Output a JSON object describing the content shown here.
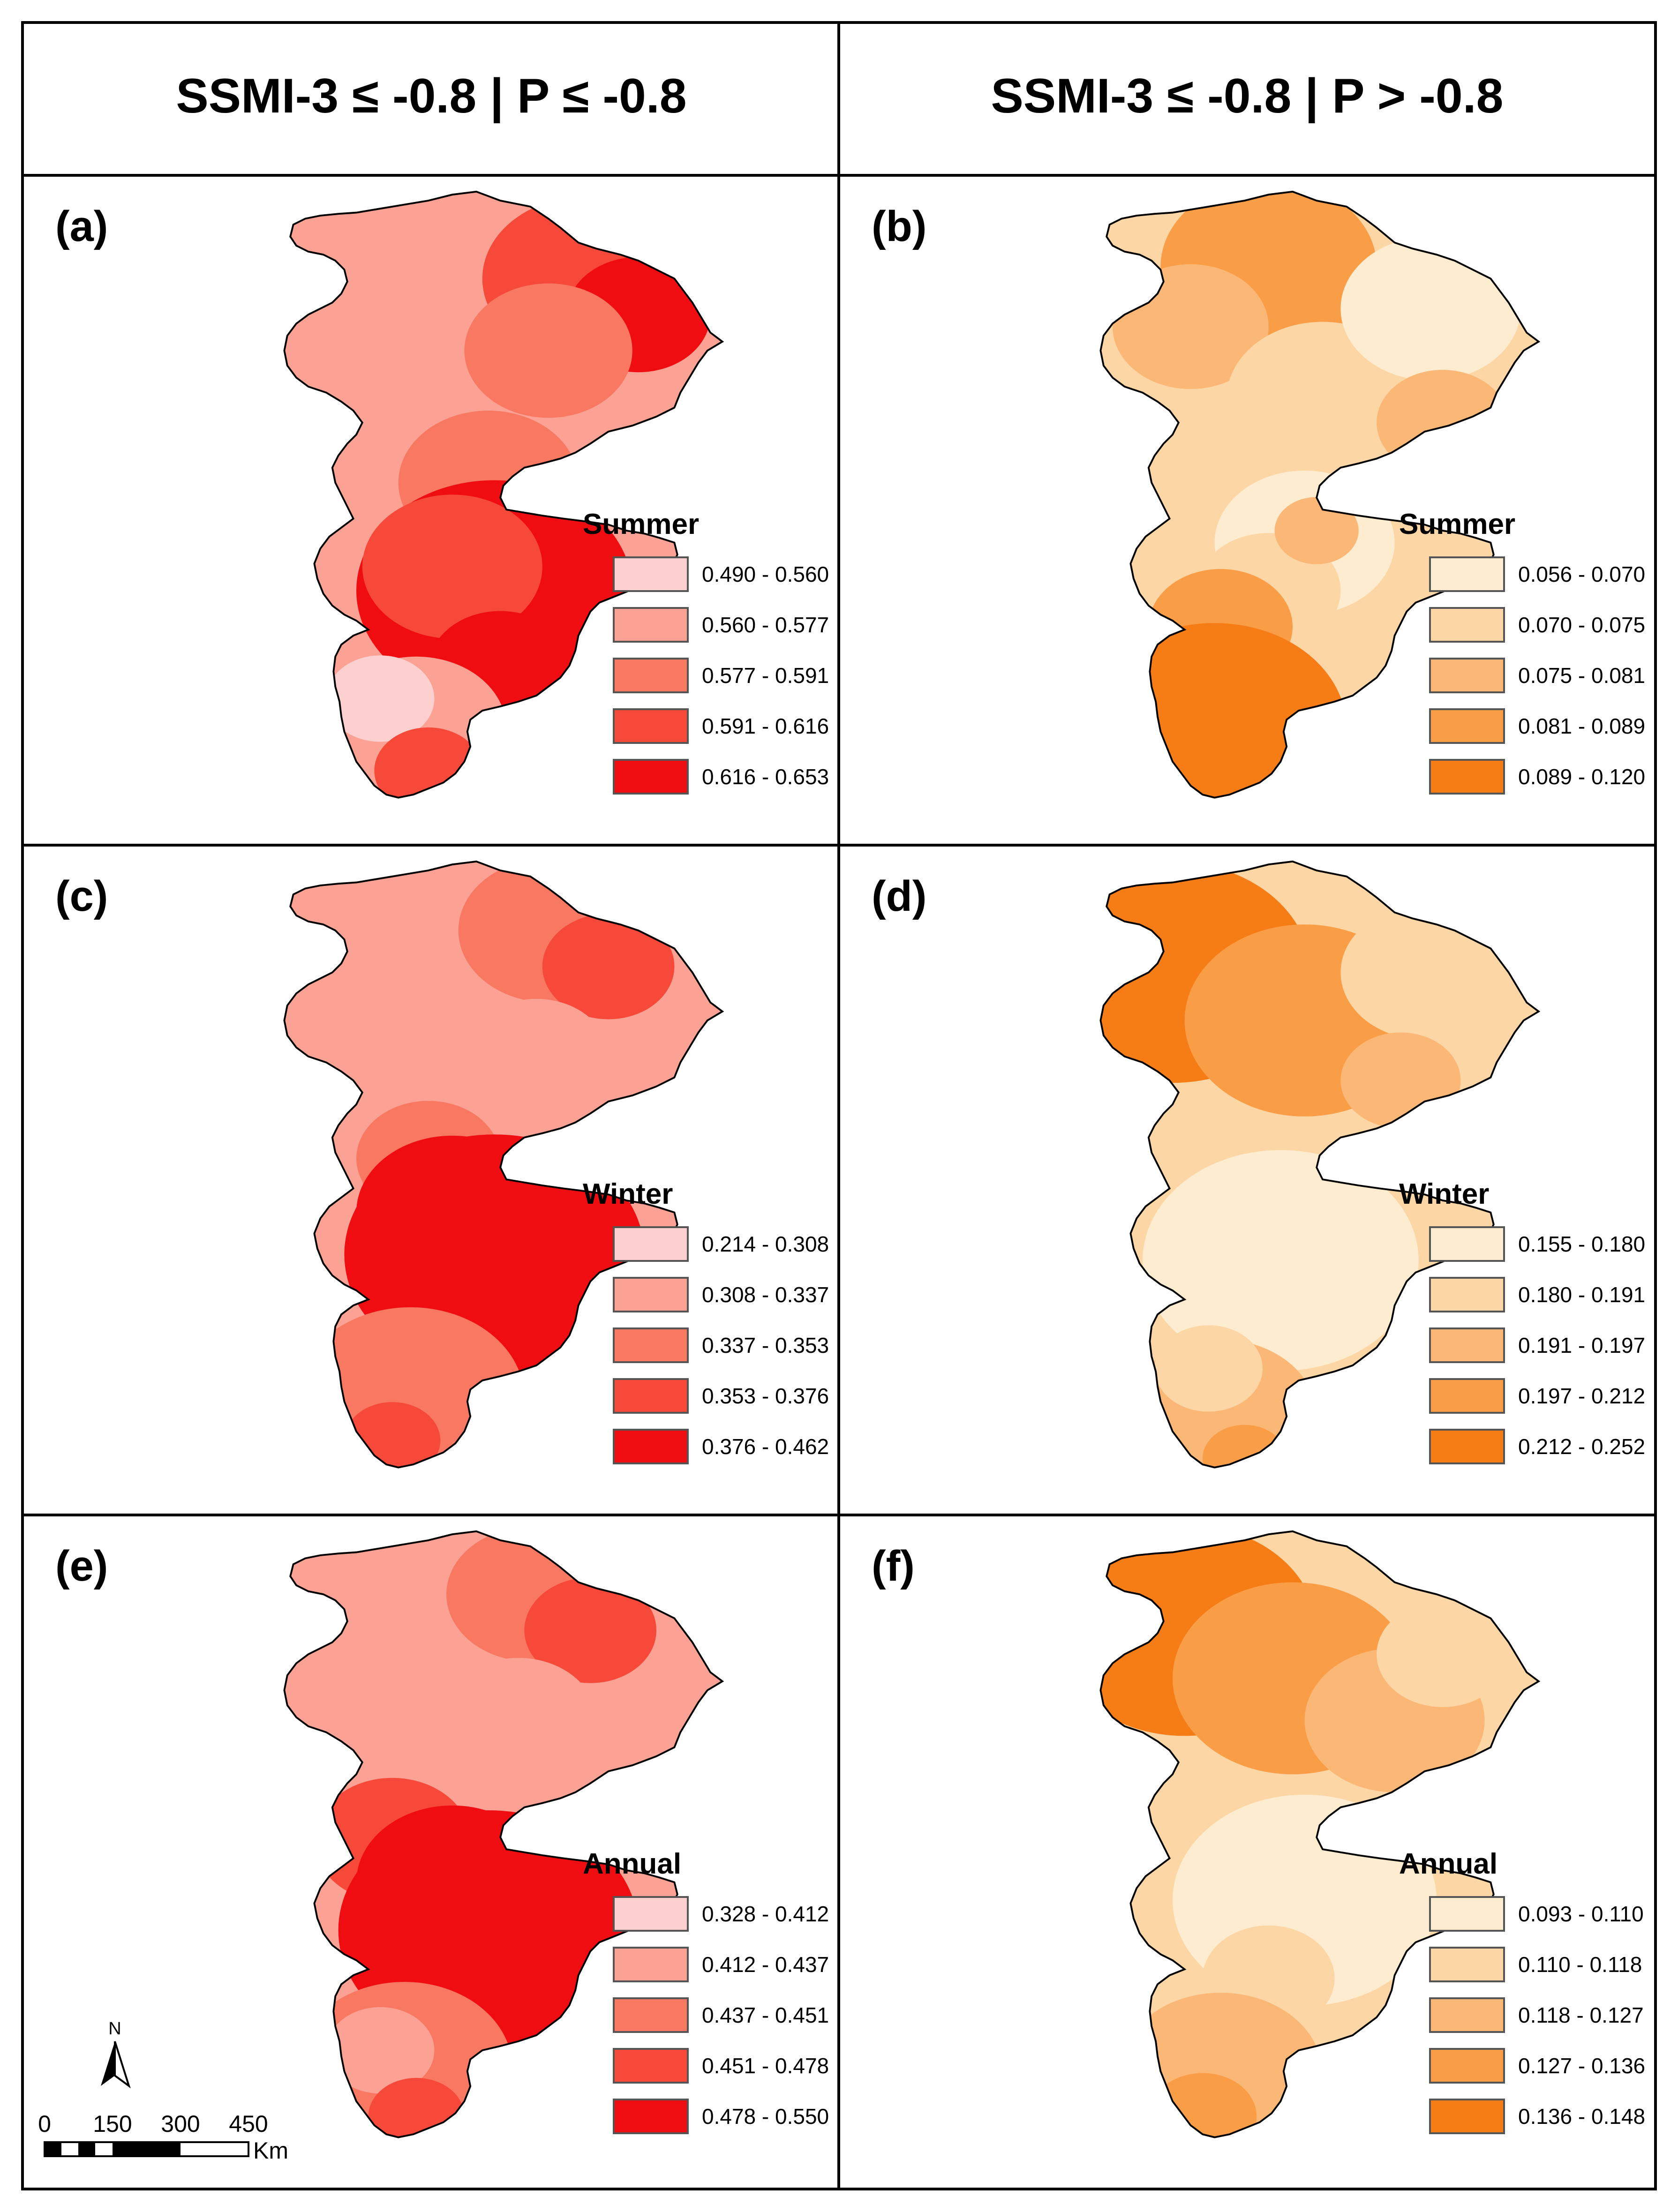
{
  "headers": [
    "SSMI-3 ≤ -0.8 | P ≤ -0.8",
    "SSMI-3 ≤ -0.8 | P > -0.8"
  ],
  "panels": [
    {
      "label": "(a)",
      "season": "Summer",
      "palette": "red",
      "ranges": [
        "0.490 - 0.560",
        "0.560 - 0.577",
        "0.577 - 0.591",
        "0.591 - 0.616",
        "0.616 - 0.653"
      ]
    },
    {
      "label": "(b)",
      "season": "Summer",
      "palette": "orange",
      "ranges": [
        "0.056 - 0.070",
        "0.070 - 0.075",
        "0.075 - 0.081",
        "0.081 - 0.089",
        "0.089 - 0.120"
      ]
    },
    {
      "label": "(c)",
      "season": "Winter",
      "palette": "red",
      "ranges": [
        "0.214 - 0.308",
        "0.308 - 0.337",
        "0.337 - 0.353",
        "0.353 - 0.376",
        "0.376 - 0.462"
      ]
    },
    {
      "label": "(d)",
      "season": "Winter",
      "palette": "orange",
      "ranges": [
        "0.155 - 0.180",
        "0.180 - 0.191",
        "0.191 - 0.197",
        "0.197 - 0.212",
        "0.212 - 0.252"
      ]
    },
    {
      "label": "(e)",
      "season": "Annual",
      "palette": "red",
      "ranges": [
        "0.328 - 0.412",
        "0.412 - 0.437",
        "0.437 - 0.451",
        "0.451 - 0.478",
        "0.478 - 0.550"
      ]
    },
    {
      "label": "(f)",
      "season": "Annual",
      "palette": "orange",
      "ranges": [
        "0.093 - 0.110",
        "0.110 - 0.118",
        "0.118 - 0.127",
        "0.127 - 0.136",
        "0.136 - 0.148"
      ]
    }
  ],
  "palettes": {
    "red": [
      "#fdd0d0",
      "#fba294",
      "#f87862",
      "#f6493a",
      "#ef0d12"
    ],
    "orange": [
      "#feecd0",
      "#fdd6a5",
      "#fbb776",
      "#f99d47",
      "#f67c16"
    ]
  },
  "scale_bar": {
    "ticks": [
      "0",
      "150",
      "300",
      "450"
    ],
    "unit": "Km"
  },
  "north_label": "N"
}
